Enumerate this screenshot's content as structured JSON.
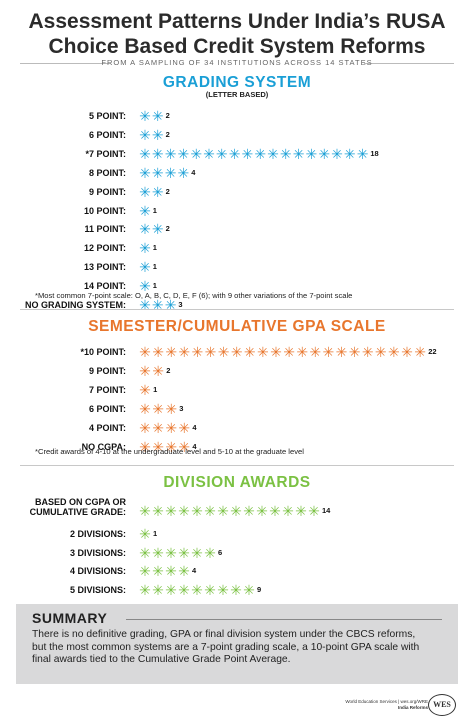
{
  "title_line1": "Assessment Patterns Under India’s RUSA",
  "title_line2": "Choice Based Credit System Reforms",
  "subtitle": "FROM A SAMPLING OF 34 INSTITUTIONS ACROSS 14 STATES",
  "colors": {
    "blue": "#1a9fd6",
    "orange": "#e8762d",
    "green": "#7bc143"
  },
  "chart_data": [
    {
      "type": "bar",
      "title": "GRADING SYSTEM",
      "subtitle": "(LETTER BASED)",
      "categories": [
        "5 POINT:",
        "6 POINT:",
        "*7 POINT:",
        "8 POINT:",
        "9 POINT:",
        "10 POINT:",
        "11 POINT:",
        "12 POINT:",
        "13 POINT:",
        "14 POINT:",
        "NO GRADING SYSTEM:"
      ],
      "values": [
        2,
        2,
        18,
        4,
        2,
        1,
        2,
        1,
        1,
        1,
        3
      ],
      "note": "*Most common 7-point scale: O, A, B, C, D, E, F (6); with 9 other variations of the 7-point scale"
    },
    {
      "type": "bar",
      "title": "SEMESTER/CUMULATIVE GPA SCALE",
      "categories": [
        "*10 POINT:",
        "9 POINT:",
        "7 POINT:",
        "6 POINT:",
        "4 POINT:",
        "NO CGPA:"
      ],
      "values": [
        22,
        2,
        1,
        3,
        4,
        4
      ],
      "note": "*Credit awards of 4-10 at the undergraduate level and 5-10 at the graduate level"
    },
    {
      "type": "bar",
      "title": "DIVISION AWARDS",
      "categories": [
        "BASED ON CGPA OR CUMULATIVE GRADE:",
        "2 DIVISIONS:",
        "3 DIVISIONS:",
        "4 DIVISIONS:",
        "5 DIVISIONS:"
      ],
      "values": [
        14,
        1,
        6,
        4,
        9
      ]
    }
  ],
  "summary": {
    "heading": "SUMMARY",
    "text": "There is no definitive grading, GPA or final division system under the CBCS reforms, but the most common systems are a 7-point grading scale, a 10-point GPA scale with final awards tied to the Cumulative Grade Point Average."
  },
  "footer": {
    "line1": "World Education Services | wes.org/WRE",
    "line2": "India Reforms",
    "logo": "WES"
  }
}
